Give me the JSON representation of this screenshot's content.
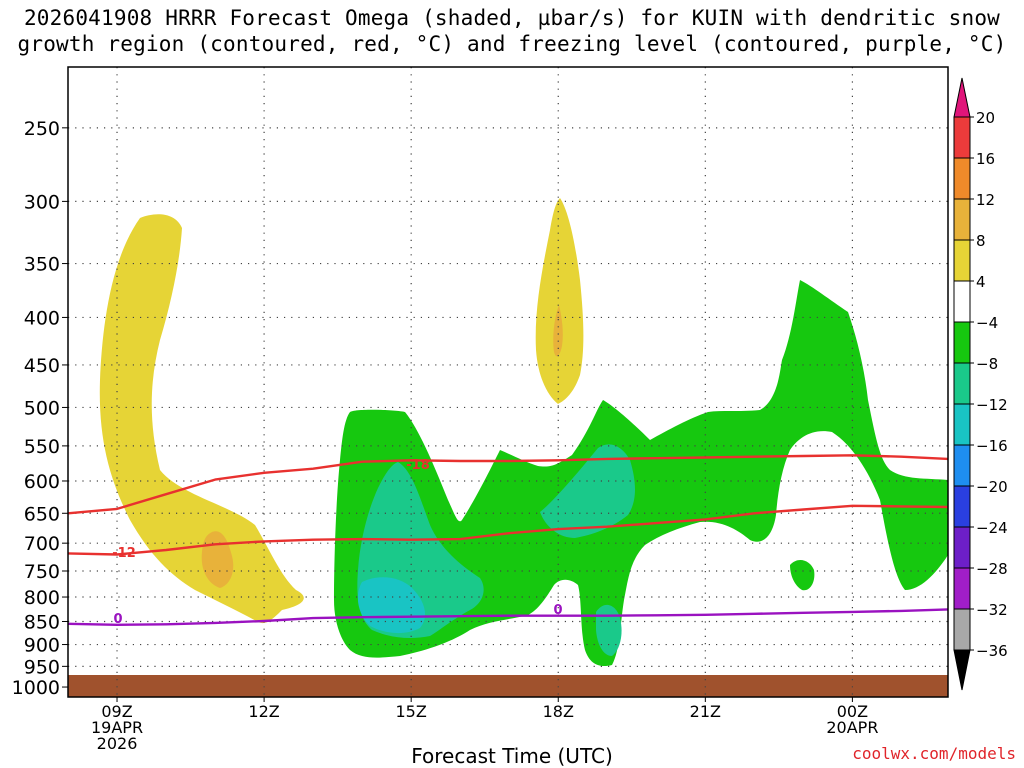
{
  "chart_data": {
    "type": "heatmap",
    "title_line1": "2026041908 HRRR Forecast Omega (shaded, µbar/s) for KUIN with dendritic snow",
    "title_line2": "growth region (contoured, red, °C) and freezing level (contoured, purple, °C)",
    "xlabel": "Forecast Time (UTC)",
    "credit": "coolwx.com/models",
    "y_ticks": [
      "250",
      "300",
      "350",
      "400",
      "450",
      "500",
      "550",
      "600",
      "650",
      "700",
      "750",
      "800",
      "850",
      "900",
      "950",
      "1000"
    ],
    "x_ticks": [
      {
        "hour": 9,
        "lines": [
          "09Z",
          "19APR",
          "2026"
        ]
      },
      {
        "hour": 12,
        "lines": [
          "12Z"
        ]
      },
      {
        "hour": 15,
        "lines": [
          "15Z"
        ]
      },
      {
        "hour": 18,
        "lines": [
          "18Z"
        ]
      },
      {
        "hour": 21,
        "lines": [
          "21Z"
        ]
      },
      {
        "hour": 24,
        "lines": [
          "00Z",
          "20APR"
        ]
      }
    ],
    "x_range_hours": [
      8.0,
      25.95
    ],
    "colorbar": {
      "labels": [
        "20",
        "16",
        "12",
        "8",
        "4",
        "−4",
        "−8",
        "−12",
        "−16",
        "−20",
        "−24",
        "−28",
        "−32",
        "−36"
      ],
      "colors": [
        "#e0157a",
        "#ec3b3b",
        "#ef8a2a",
        "#e8b23a",
        "#e6d436",
        "#ffffff",
        "#16c80f",
        "#1ac98a",
        "#19c4c4",
        "#1e8ef0",
        "#2a3fe0",
        "#6d1fc8",
        "#a11ec8",
        "#a8a8a8",
        "#000000"
      ]
    },
    "contour_labels": [
      {
        "text": "-18",
        "color": "#e8312f"
      },
      {
        "text": "-12",
        "color": "#e8312f"
      },
      {
        "text": "0",
        "color": "#9a12c0"
      },
      {
        "text": "0",
        "color": "#9a12c0"
      }
    ],
    "series": [
      {
        "name": "dendritic -18°C",
        "color": "#e8312f",
        "x": [
          8.0,
          9.0,
          10.0,
          11.0,
          12.0,
          13.0,
          14.0,
          15.0,
          16.0,
          17.0,
          18.0,
          19.0,
          20.0,
          21.0,
          22.0,
          23.0,
          24.0,
          25.0,
          25.95
        ],
        "pressure": [
          650,
          643,
          620,
          598,
          588,
          582,
          572,
          570,
          571,
          571,
          570,
          568,
          567,
          566,
          565,
          564,
          563,
          565,
          568
        ]
      },
      {
        "name": "dendritic -12°C",
        "color": "#e8312f",
        "x": [
          8.0,
          9.0,
          10.0,
          11.0,
          12.0,
          13.0,
          14.0,
          15.0,
          16.0,
          17.0,
          18.0,
          19.0,
          20.0,
          21.0,
          22.0,
          23.0,
          24.0,
          25.0,
          25.95
        ],
        "pressure": [
          718,
          720,
          712,
          702,
          697,
          694,
          693,
          694,
          693,
          683,
          676,
          672,
          666,
          660,
          650,
          644,
          638,
          639,
          640
        ]
      },
      {
        "name": "freezing level 0°C",
        "color": "#9a12c0",
        "x": [
          8.0,
          9.0,
          10.0,
          11.0,
          12.0,
          13.0,
          14.0,
          15.0,
          16.0,
          17.0,
          18.0,
          19.0,
          20.0,
          21.0,
          22.0,
          23.0,
          24.0,
          25.0,
          25.95
        ],
        "pressure": [
          855,
          857,
          856,
          853,
          849,
          843,
          841,
          840,
          839,
          838,
          838,
          838,
          837,
          836,
          834,
          832,
          830,
          828,
          825
        ]
      }
    ]
  }
}
